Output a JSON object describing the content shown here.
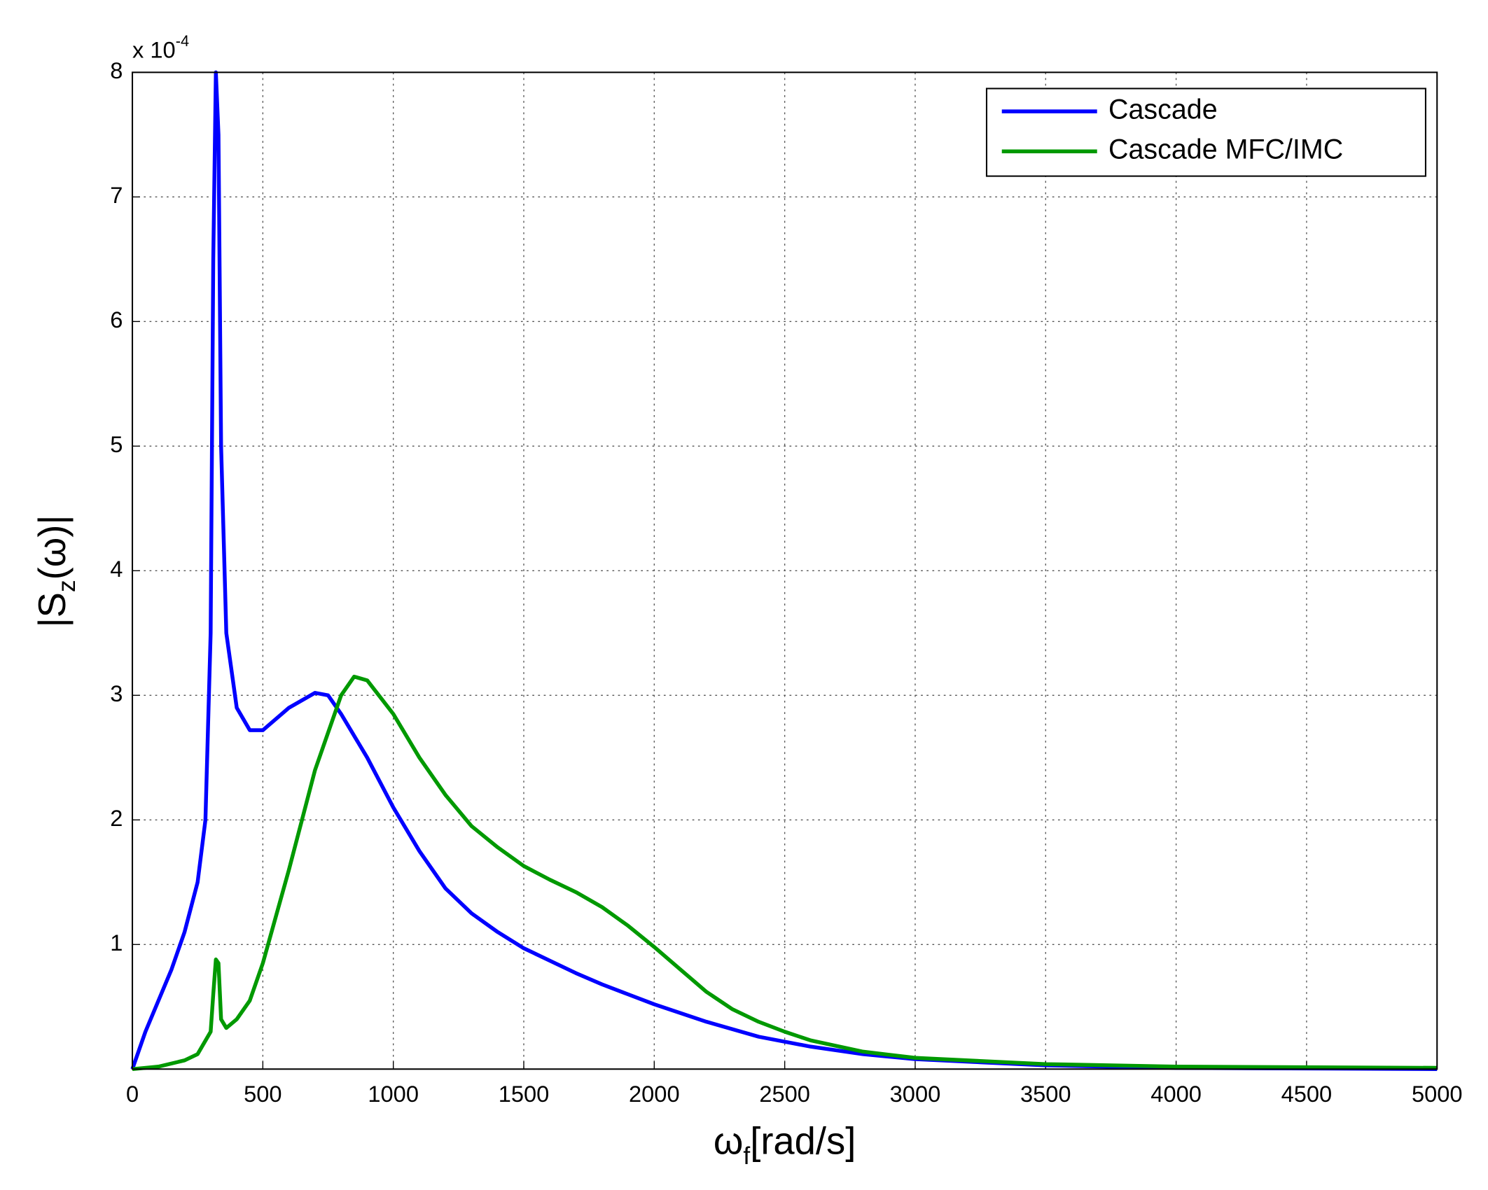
{
  "chart_data": {
    "type": "line",
    "x_label": {
      "symbol": "ω",
      "subscript": "f",
      "rest": "[rad/s]"
    },
    "y_label": {
      "prefix": "|S",
      "subscript": "z",
      "rest": "(ω)|"
    },
    "y_multiplier": {
      "base": "x 10",
      "exponent": "-4"
    },
    "xlim": [
      0,
      5000
    ],
    "ylim": [
      0,
      8
    ],
    "xticks": [
      0,
      500,
      1000,
      1500,
      2000,
      2500,
      3000,
      3500,
      4000,
      4500,
      5000
    ],
    "yticks": [
      1,
      2,
      3,
      4,
      5,
      6,
      7,
      8
    ],
    "grid": true,
    "legend": "upper right",
    "series": [
      {
        "name": "Cascade",
        "color": "#0000ff",
        "x": [
          0,
          50,
          100,
          150,
          200,
          250,
          280,
          300,
          310,
          320,
          330,
          340,
          360,
          400,
          450,
          500,
          600,
          700,
          750,
          800,
          900,
          1000,
          1100,
          1200,
          1300,
          1400,
          1500,
          1600,
          1700,
          1800,
          1900,
          2000,
          2200,
          2400,
          2600,
          2800,
          3000,
          3500,
          4000,
          5000
        ],
        "values": [
          0,
          0.3,
          0.55,
          0.8,
          1.1,
          1.5,
          2.0,
          3.5,
          6.5,
          8.0,
          7.5,
          5.0,
          3.5,
          2.9,
          2.72,
          2.72,
          2.9,
          3.02,
          3.0,
          2.85,
          2.5,
          2.1,
          1.75,
          1.45,
          1.25,
          1.1,
          0.97,
          0.87,
          0.77,
          0.68,
          0.6,
          0.52,
          0.38,
          0.26,
          0.18,
          0.12,
          0.08,
          0.03,
          0.01,
          0
        ]
      },
      {
        "name": "Cascade MFC/IMC",
        "color": "#009900",
        "x": [
          0,
          100,
          200,
          250,
          300,
          310,
          320,
          330,
          340,
          360,
          400,
          450,
          500,
          600,
          700,
          800,
          850,
          900,
          1000,
          1100,
          1200,
          1300,
          1400,
          1500,
          1600,
          1700,
          1800,
          1900,
          2000,
          2100,
          2200,
          2300,
          2400,
          2500,
          2600,
          2800,
          3000,
          3500,
          4000,
          5000
        ],
        "values": [
          0,
          0.02,
          0.07,
          0.12,
          0.3,
          0.6,
          0.88,
          0.85,
          0.4,
          0.33,
          0.4,
          0.55,
          0.85,
          1.6,
          2.4,
          3.0,
          3.15,
          3.12,
          2.85,
          2.5,
          2.2,
          1.95,
          1.78,
          1.63,
          1.52,
          1.42,
          1.3,
          1.15,
          0.98,
          0.8,
          0.62,
          0.48,
          0.38,
          0.3,
          0.23,
          0.14,
          0.09,
          0.04,
          0.02,
          0.01
        ]
      }
    ]
  }
}
